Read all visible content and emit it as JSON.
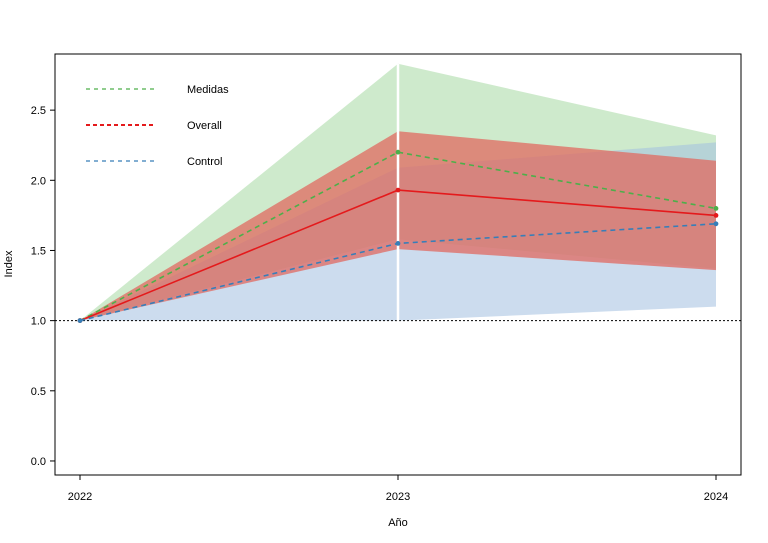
{
  "chart_data": {
    "type": "line",
    "title": "",
    "xlabel": "Año",
    "ylabel": "Index",
    "x": [
      "2022",
      "2023",
      "2024"
    ],
    "ylim": [
      -0.1,
      2.9
    ],
    "yticks": [
      "0.0",
      "0.5",
      "1.0",
      "1.5",
      "2.0",
      "2.5"
    ],
    "reference_line": 1.0,
    "vertical_marker_x": "2023",
    "series": [
      {
        "name": "Medidas",
        "color": "#4daf4a",
        "line": "dashed",
        "values": [
          1.0,
          2.2,
          1.8
        ],
        "band_lower": [
          1.0,
          1.58,
          1.37
        ],
        "band_upper": [
          1.0,
          2.83,
          2.32
        ],
        "band_color": "#a6d8a2"
      },
      {
        "name": "Overall",
        "color": "#e41a1c",
        "line": "solid",
        "values": [
          1.0,
          1.93,
          1.75
        ],
        "band_lower": [
          1.0,
          1.51,
          1.36
        ],
        "band_upper": [
          1.0,
          2.35,
          2.14
        ],
        "band_color": "#e06a60"
      },
      {
        "name": "Control",
        "color": "#377eb8",
        "line": "dashed",
        "values": [
          1.0,
          1.55,
          1.69
        ],
        "band_lower": [
          1.0,
          1.0,
          1.1
        ],
        "band_upper": [
          1.0,
          2.09,
          2.27
        ],
        "band_color": "#a3bfe0"
      }
    ],
    "legend": [
      "Medidas",
      "Overall",
      "Control"
    ],
    "legend_position": "top-left"
  }
}
